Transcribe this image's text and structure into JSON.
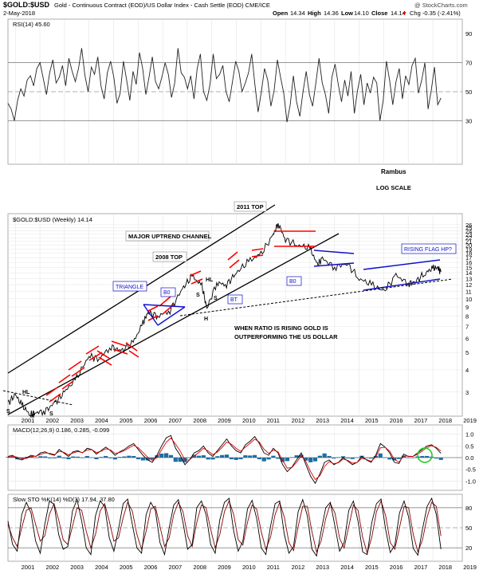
{
  "header": {
    "symbol": "$GOLD:$USD",
    "description": "Gold - Continuous Contract (EOD)/US Dollar Index - Cash Settle (EOD)  CME/ICE",
    "date": "2-May-2018",
    "copyright": "@ StockCharts.com",
    "open_label": "Open",
    "open": "14.34",
    "high_label": "High",
    "high": "14.36",
    "low_label": "Low",
    "low": "14.10",
    "close_label": "Close",
    "close": "14.14",
    "chg": "Chg -0.35 (-2.41%)",
    "chg_arrow": "▼"
  },
  "colors": {
    "price_line": "#000000",
    "rsi_line": "#222222",
    "macd_line": "#000000",
    "signal_line": "#e00000",
    "histogram": "#1e6ea0",
    "sto_k": "#000000",
    "sto_d": "#8b0000",
    "red_flag": "#ff0000",
    "blue_pattern": "#1010cc",
    "circle": "#22cc22",
    "grid": "#e4e4e4",
    "ref_line": "#999999"
  },
  "chart_data": [
    {
      "panel": "rsi",
      "type": "line",
      "title": "RSI(14) 45.60",
      "ylim": [
        0,
        100
      ],
      "y_ticks": [
        30,
        50,
        70,
        90
      ],
      "ref_lines": [
        70,
        50,
        30
      ],
      "x_start": 2000.7,
      "x_end": 2018.33,
      "series": [
        {
          "values": [
            42,
            38,
            30,
            44,
            52,
            47,
            58,
            61,
            54,
            66,
            70,
            59,
            48,
            63,
            72,
            56,
            60,
            68,
            54,
            73,
            64,
            57,
            66,
            80,
            61,
            50,
            67,
            62,
            74,
            54,
            45,
            63,
            71,
            60,
            42,
            49,
            71,
            58,
            44,
            64,
            55,
            77,
            66,
            48,
            60,
            74,
            57,
            52,
            60,
            70,
            62,
            46,
            56,
            80,
            63,
            60,
            52,
            61,
            45,
            66,
            76,
            50,
            44,
            55,
            76,
            59,
            62,
            68,
            50,
            43,
            57,
            71,
            64,
            50,
            56,
            63,
            76,
            55,
            36,
            50,
            66,
            58,
            40,
            51,
            72,
            60,
            49,
            29,
            41,
            61,
            43,
            33,
            50,
            64,
            48,
            40,
            56,
            73,
            56,
            48,
            35,
            60,
            69,
            55,
            43,
            58,
            47,
            64,
            35,
            51,
            62,
            41,
            56,
            49,
            60,
            56,
            30,
            44,
            71,
            58,
            41,
            57,
            66,
            45,
            61,
            55,
            68,
            73,
            49,
            58,
            70,
            38,
            51,
            67,
            41,
            45.6
          ]
        }
      ]
    },
    {
      "panel": "price",
      "type": "line",
      "title": "$GOLD:$USD (Weekly) 14.14",
      "scale": "log",
      "ylim": [
        2.2,
        30
      ],
      "y_ticks": [
        3,
        4,
        5,
        6,
        7,
        8,
        9,
        10,
        11,
        12,
        13,
        14,
        15,
        16,
        17,
        18,
        19,
        20,
        21,
        22,
        23,
        24,
        25,
        26
      ],
      "x_ticks": [
        "2001",
        "2002",
        "2003",
        "2004",
        "2005",
        "2006",
        "2007",
        "2008",
        "2009",
        "2010",
        "2011",
        "2012",
        "2013",
        "2014",
        "2015",
        "2016",
        "2017",
        "2018",
        "2019"
      ],
      "x": [
        2000.7,
        2001.0,
        2001.3,
        2001.6,
        2001.8,
        2002.2,
        2002.6,
        2003.0,
        2003.5,
        2004.0,
        2004.4,
        2004.9,
        2005.3,
        2005.8,
        2006.2,
        2006.4,
        2006.8,
        2007.3,
        2007.8,
        2008.2,
        2008.6,
        2008.8,
        2009.2,
        2009.6,
        2010.0,
        2010.5,
        2011.0,
        2011.5,
        2011.7,
        2012.0,
        2012.5,
        2013.0,
        2013.3,
        2013.5,
        2014.0,
        2014.5,
        2015.0,
        2015.5,
        2016.0,
        2016.5,
        2017.0,
        2017.3,
        2017.7,
        2018.0,
        2018.2,
        2018.33
      ],
      "values": [
        2.6,
        2.9,
        2.5,
        2.25,
        2.3,
        2.35,
        2.6,
        3.0,
        3.6,
        4.8,
        4.6,
        5.4,
        5.1,
        5.7,
        7.3,
        8.4,
        8.0,
        8.6,
        11.4,
        13.4,
        11.8,
        8.8,
        12.3,
        12.0,
        14.0,
        16.2,
        17.8,
        22.8,
        26.5,
        21.5,
        20.0,
        19.2,
        15.5,
        16.8,
        15.0,
        15.8,
        13.0,
        12.0,
        11.0,
        13.5,
        12.2,
        12.5,
        14.0,
        14.8,
        14.9,
        14.14
      ]
    },
    {
      "panel": "macd",
      "type": "line",
      "title": "MACD(12,26,9) 0.186, 0.285, -0.099",
      "ylim": [
        -1.4,
        1.4
      ],
      "y_ticks": [
        -1.0,
        -0.5,
        0.0,
        0.5,
        1.0
      ],
      "x_start": 2000.7,
      "x_end": 2018.33,
      "series": [
        {
          "values": [
            0.05,
            0.1,
            -0.05,
            -0.1,
            0,
            0.1,
            0.05,
            0.2,
            0.25,
            0.15,
            0.1,
            0.35,
            0.2,
            0.05,
            0.25,
            0.3,
            0.2,
            0.4,
            0.35,
            0.15,
            0.3,
            0.45,
            0.3,
            0.1,
            0.25,
            0.35,
            0.5,
            0.6,
            0.35,
            0.1,
            -0.1,
            -0.2,
            0.1,
            0.5,
            0.85,
            0.95,
            0.4,
            0.1,
            -0.3,
            -0.1,
            0.2,
            0.3,
            0.5,
            0.2,
            0.05,
            0.3,
            0.55,
            0.8,
            0.5,
            0.3,
            0.2,
            0.55,
            0.7,
            0.9,
            0.6,
            0.2,
            0.1,
            0.4,
            0.2,
            -0.3,
            -0.6,
            -0.4,
            -0.1,
            0.2,
            -0.3,
            -0.8,
            -1.1,
            -0.7,
            -0.2,
            -0.1,
            -0.3,
            -0.2,
            0,
            -0.15,
            -0.3,
            -0.2,
            0.05,
            -0.1,
            -0.2,
            0.1,
            0.6,
            0.45,
            0.2,
            -0.2,
            -0.25,
            0.15,
            0.05,
            0.05,
            0.2,
            0.35,
            0.5,
            0.55,
            0.4,
            0.186
          ]
        },
        {
          "values": [
            0.02,
            0.06,
            0.02,
            -0.05,
            -0.03,
            0.05,
            0.06,
            0.14,
            0.2,
            0.18,
            0.13,
            0.27,
            0.23,
            0.12,
            0.2,
            0.26,
            0.22,
            0.33,
            0.34,
            0.22,
            0.27,
            0.38,
            0.33,
            0.18,
            0.22,
            0.3,
            0.42,
            0.53,
            0.42,
            0.22,
            0.02,
            -0.12,
            0,
            0.33,
            0.66,
            0.84,
            0.58,
            0.28,
            -0.1,
            -0.1,
            0.08,
            0.22,
            0.4,
            0.28,
            0.13,
            0.24,
            0.44,
            0.67,
            0.57,
            0.4,
            0.27,
            0.45,
            0.61,
            0.79,
            0.67,
            0.36,
            0.18,
            0.32,
            0.25,
            -0.12,
            -0.45,
            -0.42,
            -0.2,
            0.08,
            -0.17,
            -0.6,
            -0.94,
            -0.78,
            -0.38,
            -0.17,
            -0.26,
            -0.22,
            -0.06,
            -0.12,
            -0.24,
            -0.21,
            -0.03,
            -0.08,
            -0.16,
            0.03,
            0.42,
            0.44,
            0.28,
            -0.08,
            -0.19,
            0.07,
            0.06,
            0.05,
            0.15,
            0.28,
            0.43,
            0.51,
            0.44,
            0.285
          ]
        }
      ]
    },
    {
      "panel": "sto",
      "type": "line",
      "title": "Slow STO %K(14) %D(3) 17.94, 37.80",
      "ylim": [
        0,
        100
      ],
      "y_ticks": [
        20,
        50,
        80
      ],
      "ref_lines": [
        80,
        50,
        20
      ],
      "x_start": 2000.7,
      "x_end": 2018.33,
      "series": [
        {
          "values": [
            60,
            25,
            15,
            70,
            88,
            72,
            30,
            12,
            55,
            90,
            85,
            40,
            18,
            22,
            75,
            92,
            60,
            20,
            10,
            68,
            90,
            82,
            35,
            15,
            48,
            86,
            93,
            55,
            20,
            12,
            70,
            88,
            76,
            28,
            10,
            50,
            84,
            92,
            58,
            18,
            25,
            80,
            90,
            70,
            25,
            12,
            62,
            88,
            94,
            45,
            15,
            30,
            78,
            91,
            64,
            20,
            10,
            52,
            86,
            90,
            40,
            12,
            22,
            74,
            92,
            68,
            18,
            8,
            45,
            80,
            88,
            52,
            15,
            28,
            76,
            90,
            60,
            14,
            10,
            58,
            86,
            93,
            47,
            13,
            24,
            72,
            90,
            66,
            19,
            9,
            48,
            82,
            94,
            70,
            17.94
          ]
        },
        {
          "values": [
            55,
            35,
            22,
            50,
            76,
            80,
            55,
            30,
            38,
            70,
            86,
            62,
            32,
            25,
            52,
            80,
            76,
            45,
            20,
            40,
            75,
            86,
            60,
            30,
            35,
            65,
            88,
            75,
            40,
            18,
            45,
            78,
            82,
            52,
            22,
            35,
            70,
            88,
            74,
            38,
            22,
            58,
            84,
            80,
            48,
            20,
            40,
            74,
            90,
            70,
            32,
            24,
            58,
            84,
            78,
            44,
            18,
            36,
            70,
            88,
            66,
            28,
            16,
            52,
            82,
            82,
            44,
            14,
            30,
            64,
            86,
            72,
            34,
            20,
            52,
            84,
            76,
            36,
            12,
            36,
            74,
            90,
            68,
            28,
            18,
            50,
            82,
            80,
            40,
            14,
            32,
            66,
            88,
            82,
            37.8
          ]
        }
      ]
    }
  ],
  "annotations": {
    "rambus": "Rambus",
    "log_scale": "LOG SCALE",
    "top_2011": "2011 TOP",
    "major_channel": "MAJOR UPTREND CHANNEL",
    "top_2008": "2008 TOP",
    "triangle": "TRIANGLE",
    "bo1": "B0",
    "bo2": "B0",
    "bt": "BT",
    "rising_flag": "RISING FLAG HP?",
    "ratio_note_1": "WHEN RATIO IS RISING GOLD IS",
    "ratio_note_2": "OUTPERFORMING THE US DOLLAR",
    "hs_left_s1": "S",
    "hs_left_h1": "HL",
    "hs_left_h": "H",
    "hs_left_s2": "S",
    "hs_mid_hl": "HL",
    "hs_mid_s1": "S",
    "hs_mid_s2": "S",
    "hs_mid_h": "H"
  }
}
